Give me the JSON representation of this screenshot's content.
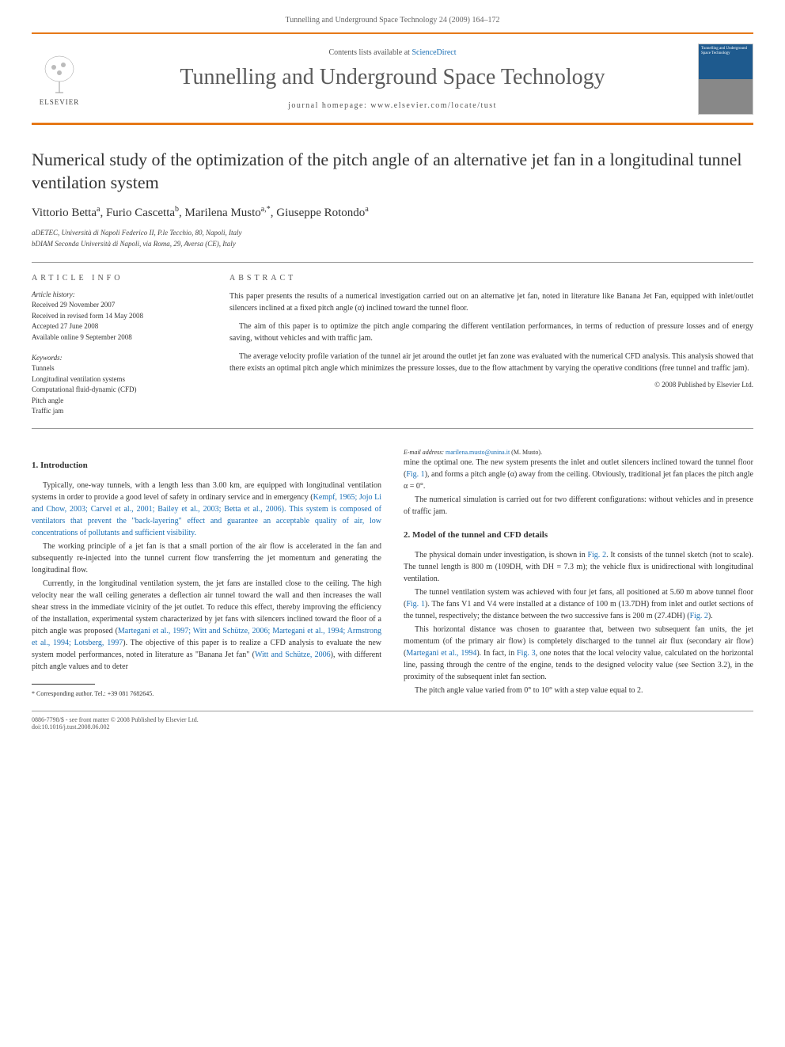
{
  "header": {
    "citation": "Tunnelling and Underground Space Technology 24 (2009) 164–172"
  },
  "banner": {
    "contents_prefix": "Contents lists available at ",
    "contents_link": "ScienceDirect",
    "journal_title": "Tunnelling and Underground Space Technology",
    "homepage_prefix": "journal homepage: ",
    "homepage_url": "www.elsevier.com/locate/tust",
    "publisher": "ELSEVIER",
    "cover_text": "Tunnelling and Underground Space Technology",
    "accent_color": "#e67817",
    "cover_top_color": "#1e5a8e"
  },
  "article": {
    "title": "Numerical study of the optimization of the pitch angle of an alternative jet fan in a longitudinal tunnel ventilation system",
    "authors_html": "Vittorio Betta<sup>a</sup>, Furio Cascetta<sup>b</sup>, Marilena Musto<sup>a,*</sup>, Giuseppe Rotondo<sup>a</sup>",
    "affiliations": [
      "aDETEC, Università di Napoli Federico II, P.le Tecchio, 80, Napoli, Italy",
      "bDIAM Seconda Università di Napoli, via Roma, 29, Aversa (CE), Italy"
    ]
  },
  "meta": {
    "info_label": "ARTICLE INFO",
    "abstract_label": "ABSTRACT",
    "history_label": "Article history:",
    "history": [
      "Received 29 November 2007",
      "Received in revised form 14 May 2008",
      "Accepted 27 June 2008",
      "Available online 9 September 2008"
    ],
    "keywords_label": "Keywords:",
    "keywords": [
      "Tunnels",
      "Longitudinal ventilation systems",
      "Computational fluid-dynamic (CFD)",
      "Pitch angle",
      "Traffic jam"
    ],
    "abstract_paragraphs": [
      "This paper presents the results of a numerical investigation carried out on an alternative jet fan, noted in literature like Banana Jet Fan, equipped with inlet/outlet silencers inclined at a fixed pitch angle (α) inclined toward the tunnel floor.",
      "The aim of this paper is to optimize the pitch angle comparing the different ventilation performances, in terms of reduction of pressure losses and of energy saving, without vehicles and with traffic jam.",
      "The average velocity profile variation of the tunnel air jet around the outlet jet fan zone was evaluated with the numerical CFD analysis. This analysis showed that there exists an optimal pitch angle which minimizes the pressure losses, due to the flow attachment by varying the operative conditions (free tunnel and traffic jam)."
    ],
    "copyright": "© 2008 Published by Elsevier Ltd."
  },
  "body": {
    "section1_title": "1. Introduction",
    "section2_title": "2. Model of the tunnel and CFD details",
    "p1_pre": "Typically, one-way tunnels, with a length less than 3.00 km, are equipped with longitudinal ventilation systems in order to provide a good level of safety in ordinary service and in emergency (",
    "p1_link": "Kempf, 1965; Jojo Li and Chow, 2003; Carvel et al., 2001; Bailey et al., 2003; Betta et al., 2006). This system is composed of ventilators that prevent the \"back-layering\" effect and guarantee an acceptable quality of air, low concentrations of pollutants and sufficient visibility.",
    "p2": "The working principle of a jet fan is that a small portion of the air flow is accelerated in the fan and subsequently re-injected into the tunnel current flow transferring the jet momentum and generating the longitudinal flow.",
    "p3_pre": "Currently, in the longitudinal ventilation system, the jet fans are installed close to the ceiling. The high velocity near the wall ceiling generates a deflection air tunnel toward the wall and then increases the wall shear stress in the immediate vicinity of the jet outlet. To reduce this effect, thereby improving the efficiency of the installation, experimental system characterized by jet fans with silencers inclined toward the floor of a pitch angle was proposed (",
    "p3_link1": "Martegani et al., 1997; Witt and Schütze, 2006; Martegani et al., 1994; Armstrong et al., 1994; Lotsberg, 1997",
    "p3_mid": "). The objective of this paper is to realize a CFD analysis to evaluate the new system model performances, noted in literature as \"Banana Jet fan\" (",
    "p3_link2": "Witt and Schütze, 2006",
    "p3_post": "), with different pitch angle values and to deter",
    "p4_pre": "mine the optimal one. The new system presents the inlet and outlet silencers inclined toward the tunnel floor (",
    "p4_fig": "Fig. 1",
    "p4_post": "), and forms a pitch angle (α) away from the ceiling. Obviously, traditional jet fan places the pitch angle α = 0°.",
    "p5": "The numerical simulation is carried out for two different configurations: without vehicles and in presence of traffic jam.",
    "p6_pre": "The physical domain under investigation, is shown in ",
    "p6_fig": "Fig. 2",
    "p6_post": ". It consists of the tunnel sketch (not to scale). The tunnel length is 800 m (109DH, with DH = 7.3 m); the vehicle flux is unidirectional with longitudinal ventilation.",
    "p7_pre": "The tunnel ventilation system was achieved with four jet fans, all positioned at 5.60 m above tunnel floor (",
    "p7_fig1": "Fig. 1",
    "p7_mid": "). The fans V1 and V4 were installed at a distance of 100 m (13.7DH) from inlet and outlet sections of the tunnel, respectively; the distance between the two successive fans is 200 m (27.4DH) (",
    "p7_fig2": "Fig. 2",
    "p7_post": ").",
    "p8_pre": "This horizontal distance was chosen to guarantee that, between two subsequent fan units, the jet momentum (of the primary air flow) is completely discharged to the tunnel air flux (secondary air flow) (",
    "p8_link": "Martegani et al., 1994",
    "p8_mid": "). In fact, in ",
    "p8_fig": "Fig. 3",
    "p8_post": ", one notes that the local velocity value, calculated on the horizontal line, passing through the centre of the engine, tends to the designed velocity value (see Section 3.2), in the proximity of the subsequent inlet fan section.",
    "p9": "The pitch angle value varied from 0° to 10° with a step value equal to 2."
  },
  "footnotes": {
    "corr": "* Corresponding author. Tel.: +39 081 7682645.",
    "email_label": "E-mail address: ",
    "email": "marilena.musto@unina.it",
    "email_person": " (M. Musto)."
  },
  "footer": {
    "line1": "0886-7798/$ - see front matter © 2008 Published by Elsevier Ltd.",
    "line2": "doi:10.1016/j.tust.2008.06.002"
  },
  "style": {
    "link_color": "#1a6fb5",
    "text_color": "#333333",
    "body_fontsize": 10,
    "title_fontsize": 22,
    "journal_title_fontsize": 28
  }
}
